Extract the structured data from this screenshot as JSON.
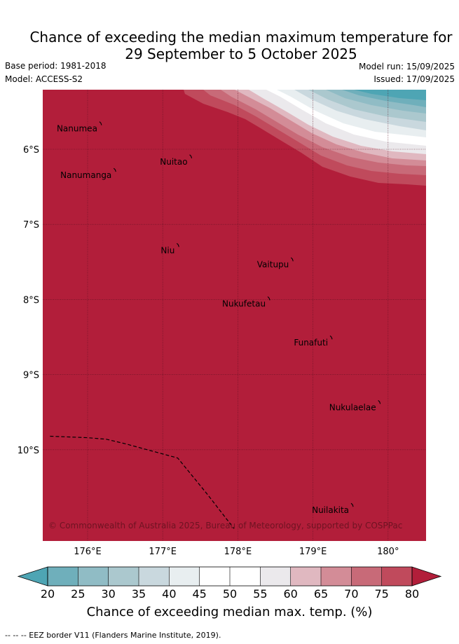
{
  "title": {
    "line1": "Chance of exceeding the median maximum temperature for",
    "line2": "29 September to 5 October 2025"
  },
  "meta": {
    "base_period": "Base period: 1981-2018",
    "model": "Model: ACCESS-S2",
    "model_run": "Model run: 15/09/2025",
    "issued": "Issued: 17/09/2025"
  },
  "map": {
    "lon_range": [
      175.45,
      180.5
    ],
    "lat_range": [
      -11.9,
      -5.9
    ],
    "lon_ticks": [
      {
        "value": 176,
        "label": "176°E"
      },
      {
        "value": 177,
        "label": "177°E"
      },
      {
        "value": 178,
        "label": "178°E"
      },
      {
        "value": 179,
        "label": "179°E"
      },
      {
        "value": 180,
        "label": "180°"
      }
    ],
    "lat_ticks": [
      {
        "value": -6,
        "label": "6°S"
      },
      {
        "value": -7,
        "label": "7°S"
      },
      {
        "value": -8,
        "label": "8°S"
      },
      {
        "value": -9,
        "label": "9°S"
      },
      {
        "value": -10,
        "label": "10°S"
      }
    ],
    "places": [
      {
        "name": "Nanumea",
        "lon": 176.13,
        "lat": -5.67
      },
      {
        "name": "Nuitao",
        "lon": 177.33,
        "lat": -6.11
      },
      {
        "name": "Nanumanga",
        "lon": 176.32,
        "lat": -6.29
      },
      {
        "name": "Niu",
        "lon": 177.16,
        "lat": -7.29
      },
      {
        "name": "Vaitupu",
        "lon": 178.68,
        "lat": -7.48
      },
      {
        "name": "Nukufetau",
        "lon": 178.37,
        "lat": -8.0
      },
      {
        "name": "Funafuti",
        "lon": 179.2,
        "lat": -8.52
      },
      {
        "name": "Nukulaelae",
        "lon": 179.84,
        "lat": -9.38
      },
      {
        "name": "Nuilakita",
        "lon": 179.48,
        "lat": -10.75
      }
    ],
    "eez_border": [
      [
        175.5,
        -9.82
      ],
      [
        176.0,
        -9.84
      ],
      [
        176.25,
        -9.86
      ],
      [
        176.5,
        -9.92
      ],
      [
        177.2,
        -10.11
      ],
      [
        177.6,
        -10.6
      ],
      [
        177.95,
        -11.05
      ]
    ],
    "credit": "© Commonwealth of Australia 2025, Bureau of Meteorology, supported by COSPPac",
    "background_color": "#b21e3a"
  },
  "colorbar": {
    "ticks": [
      "20",
      "25",
      "30",
      "35",
      "40",
      "45",
      "50",
      "55",
      "60",
      "65",
      "70",
      "75",
      "80"
    ],
    "colors": [
      "#6fafbb",
      "#90bcc5",
      "#abc8ce",
      "#c9d8de",
      "#e8eef0",
      "#ffffff",
      "#ffffff",
      "#ebe9ec",
      "#e0b8c0",
      "#d38c97",
      "#c86a78",
      "#c04a5c"
    ],
    "under_color": "#4ea5b4",
    "over_color": "#b21e3a",
    "title": "Chance of exceeding median max. temp. (%)"
  },
  "footer": "-- -- -- EEZ border V11 (Flanders Marine Institute, 2019)."
}
